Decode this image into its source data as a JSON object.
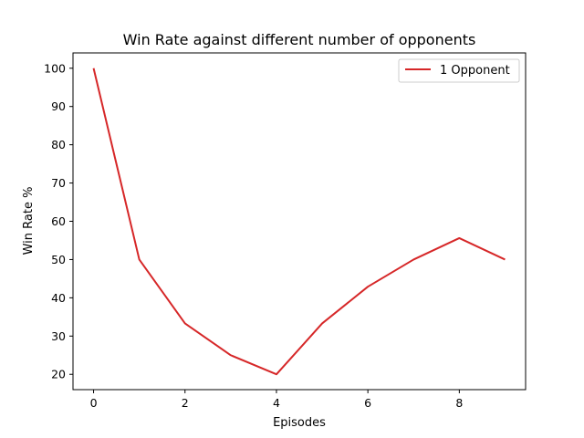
{
  "chart_data": {
    "type": "line",
    "title": "Win Rate against different number of opponents",
    "xlabel": "Episodes",
    "ylabel": "Win Rate %",
    "xlim": [
      -0.45,
      9.45
    ],
    "ylim": [
      16,
      104
    ],
    "xticks": [
      0,
      2,
      4,
      6,
      8
    ],
    "yticks": [
      20,
      30,
      40,
      50,
      60,
      70,
      80,
      90,
      100
    ],
    "grid": false,
    "legend_position": "top-right",
    "series": [
      {
        "name": "1 Opponent",
        "color": "#d62728",
        "x": [
          0,
          1,
          2,
          3,
          4,
          5,
          6,
          7,
          8,
          9
        ],
        "y": [
          100,
          50,
          33.3,
          25,
          20,
          33.3,
          42.9,
          50,
          55.6,
          50
        ]
      }
    ]
  }
}
